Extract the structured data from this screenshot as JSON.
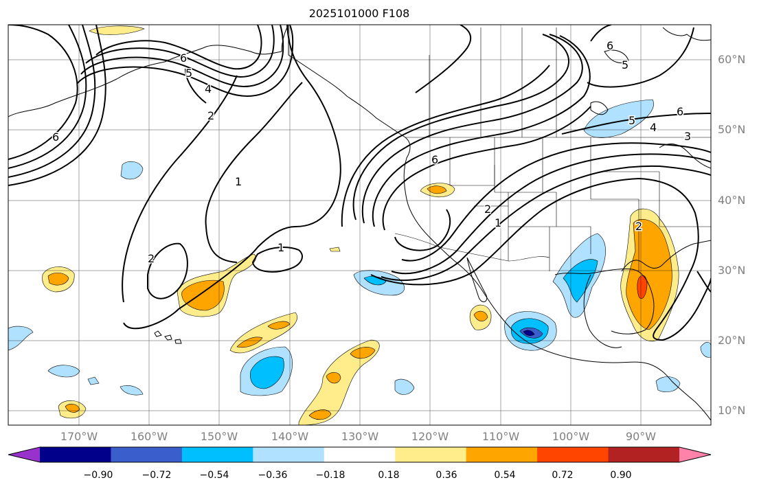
{
  "title": "2025101000 F108",
  "lat_labels": [
    "60°N",
    "50°N",
    "40°N",
    "30°N",
    "20°N",
    "10°N"
  ],
  "lon_labels": [
    "170°W",
    "160°W",
    "150°W",
    "140°W",
    "130°W",
    "120°W",
    "110°W",
    "100°W",
    "90°W"
  ],
  "colorbar": {
    "labels": [
      "−0.90",
      "−0.72",
      "−0.54",
      "−0.36",
      "−0.18",
      "0.18",
      "0.36",
      "0.54",
      "0.72",
      "0.90"
    ],
    "colors": [
      "#9932cc",
      "#00008b",
      "#3a5fcd",
      "#00bfff",
      "#b0e2ff",
      "#ffffff",
      "#ffec8b",
      "#ffa500",
      "#ff4500",
      "#b22222",
      "#ff82ab"
    ]
  },
  "contour_labels": [
    "6",
    "5",
    "4",
    "2",
    "1",
    "1",
    "2",
    "6",
    "2",
    "1",
    "6",
    "5",
    "4",
    "3",
    "6",
    "5",
    "6",
    "2"
  ]
}
